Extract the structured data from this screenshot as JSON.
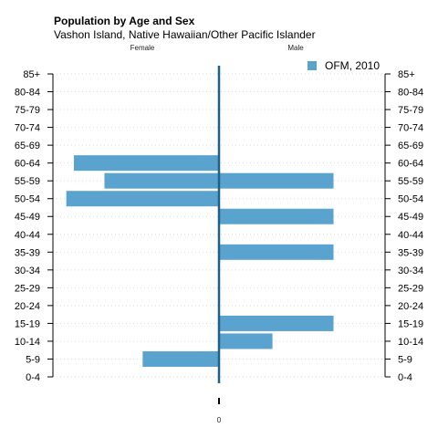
{
  "chart_data": {
    "type": "bar",
    "orientation": "horizontal-population-pyramid",
    "title": "Population by Age and Sex",
    "subtitle": "Vashon Island, Native Hawaiian/Other Pacific Islander",
    "left_label": "Female",
    "right_label": "Male",
    "zero_label": "0",
    "categories": [
      "0-4",
      "5-9",
      "10-14",
      "15-19",
      "20-24",
      "25-29",
      "30-34",
      "35-39",
      "40-44",
      "45-49",
      "50-54",
      "55-59",
      "60-64",
      "65-69",
      "70-74",
      "75-79",
      "80-84",
      "85+"
    ],
    "series": [
      {
        "name": "OFM, 2010",
        "color": "#5ba3cf",
        "female": [
          0,
          2,
          0,
          0,
          0,
          0,
          0,
          0,
          0,
          0,
          4,
          3,
          3.8,
          0,
          0,
          0,
          0,
          0
        ],
        "male": [
          0,
          0,
          1.4,
          3,
          0,
          0,
          0,
          3,
          0,
          3,
          0,
          3,
          0,
          0,
          0,
          0,
          0,
          0
        ]
      }
    ],
    "xlim": [
      -4.35,
      4.35
    ],
    "grid": true,
    "legend_position": "top-right"
  }
}
